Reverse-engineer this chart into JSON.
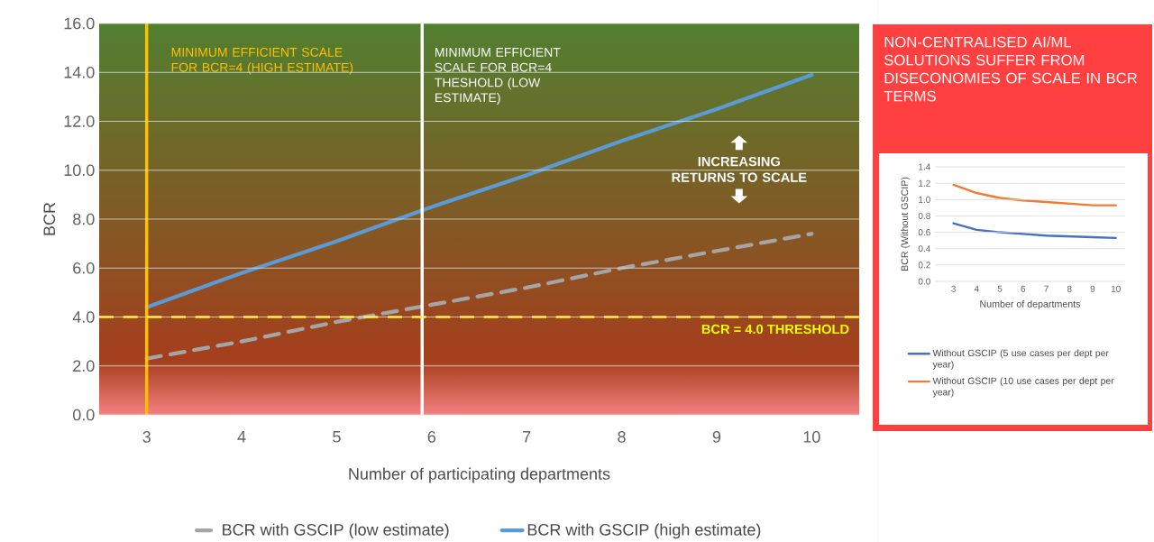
{
  "chart_data": [
    {
      "type": "line",
      "xlabel": "Number of participating departments",
      "ylabel": "BCR",
      "x": [
        3,
        4,
        5,
        6,
        7,
        8,
        9,
        10
      ],
      "xlim": [
        2.5,
        10.5
      ],
      "xticks": [
        3,
        4,
        5,
        6,
        7,
        8,
        9,
        10
      ],
      "ylim": [
        0,
        16
      ],
      "yticks": [
        {
          "value": 0,
          "label": "0.0"
        },
        {
          "value": 2,
          "label": "2.0"
        },
        {
          "value": 4,
          "label": "4.0"
        },
        {
          "value": 6,
          "label": "6.0"
        },
        {
          "value": 8,
          "label": "8.0"
        },
        {
          "value": 10,
          "label": "10.0"
        },
        {
          "value": 12,
          "label": "12.0"
        },
        {
          "value": 14,
          "label": "14.0"
        },
        {
          "value": 16,
          "label": "16.0"
        }
      ],
      "grid": "y",
      "legend": "bottom",
      "series": [
        {
          "name": "BCR with GSCIP (low estimate)",
          "color": "#a5a5a5",
          "line_style": "dashed",
          "values": [
            2.3,
            3.0,
            3.8,
            4.5,
            5.2,
            6.0,
            6.7,
            7.4
          ]
        },
        {
          "name": "BCR with GSCIP (high estimate)",
          "color": "#5b9bd5",
          "line_style": "solid",
          "values": [
            4.4,
            5.8,
            7.1,
            8.5,
            9.8,
            11.2,
            12.5,
            13.9
          ]
        }
      ],
      "ref_lines": [
        {
          "axis": "x",
          "value": 3,
          "color": "#ffc000"
        },
        {
          "axis": "x",
          "value": 5.9,
          "color": "#ffffff"
        },
        {
          "axis": "y",
          "value": 4,
          "label": "BCR = 4.0 THRESHOLD",
          "color": "#ffff00",
          "line_style": "dashed"
        }
      ],
      "annotations": [
        "MINIMUM EFFICIENT SCALE FOR BCR=4 (HIGH ESTIMATE)",
        "MINIMUM EFFICIENT SCALE FOR BCR=4 THESHOLD (LOW ESTIMATE)",
        "INCREASING RETURNS TO SCALE"
      ]
    },
    {
      "type": "line",
      "title": "NON-CENTRALISED AI/ML SOLUTIONS SUFFER FROM DISECONOMIES OF SCALE IN BCR TERMS",
      "xlabel": "Number of departments",
      "ylabel": "BCR (Without GSCIP)",
      "x": [
        3,
        4,
        5,
        6,
        7,
        8,
        9,
        10
      ],
      "xlim": [
        2.2,
        10.4
      ],
      "xticks": [
        3,
        4,
        5,
        6,
        7,
        8,
        9,
        10
      ],
      "ylim": [
        0,
        1.4
      ],
      "yticks": [
        {
          "value": 0,
          "label": "0.0"
        },
        {
          "value": 0.2,
          "label": "0.2"
        },
        {
          "value": 0.4,
          "label": "0.4"
        },
        {
          "value": 0.6,
          "label": "0.6"
        },
        {
          "value": 0.8,
          "label": "0.8"
        },
        {
          "value": 1.0,
          "label": "1.0"
        },
        {
          "value": 1.2,
          "label": "1.2"
        },
        {
          "value": 1.4,
          "label": "1.4"
        }
      ],
      "grid": "y",
      "legend": "bottom",
      "series": [
        {
          "name": "Without GSCIP (5 use cases per dept per year)",
          "color": "#4472c4",
          "line_style": "solid",
          "values": [
            0.71,
            0.63,
            0.6,
            0.58,
            0.56,
            0.55,
            0.54,
            0.53
          ]
        },
        {
          "name": "Without GSCIP (10 use cases per dept per year)",
          "color": "#ed7d31",
          "line_style": "solid",
          "values": [
            1.18,
            1.08,
            1.02,
            0.99,
            0.97,
            0.95,
            0.93,
            0.93
          ]
        }
      ]
    }
  ]
}
